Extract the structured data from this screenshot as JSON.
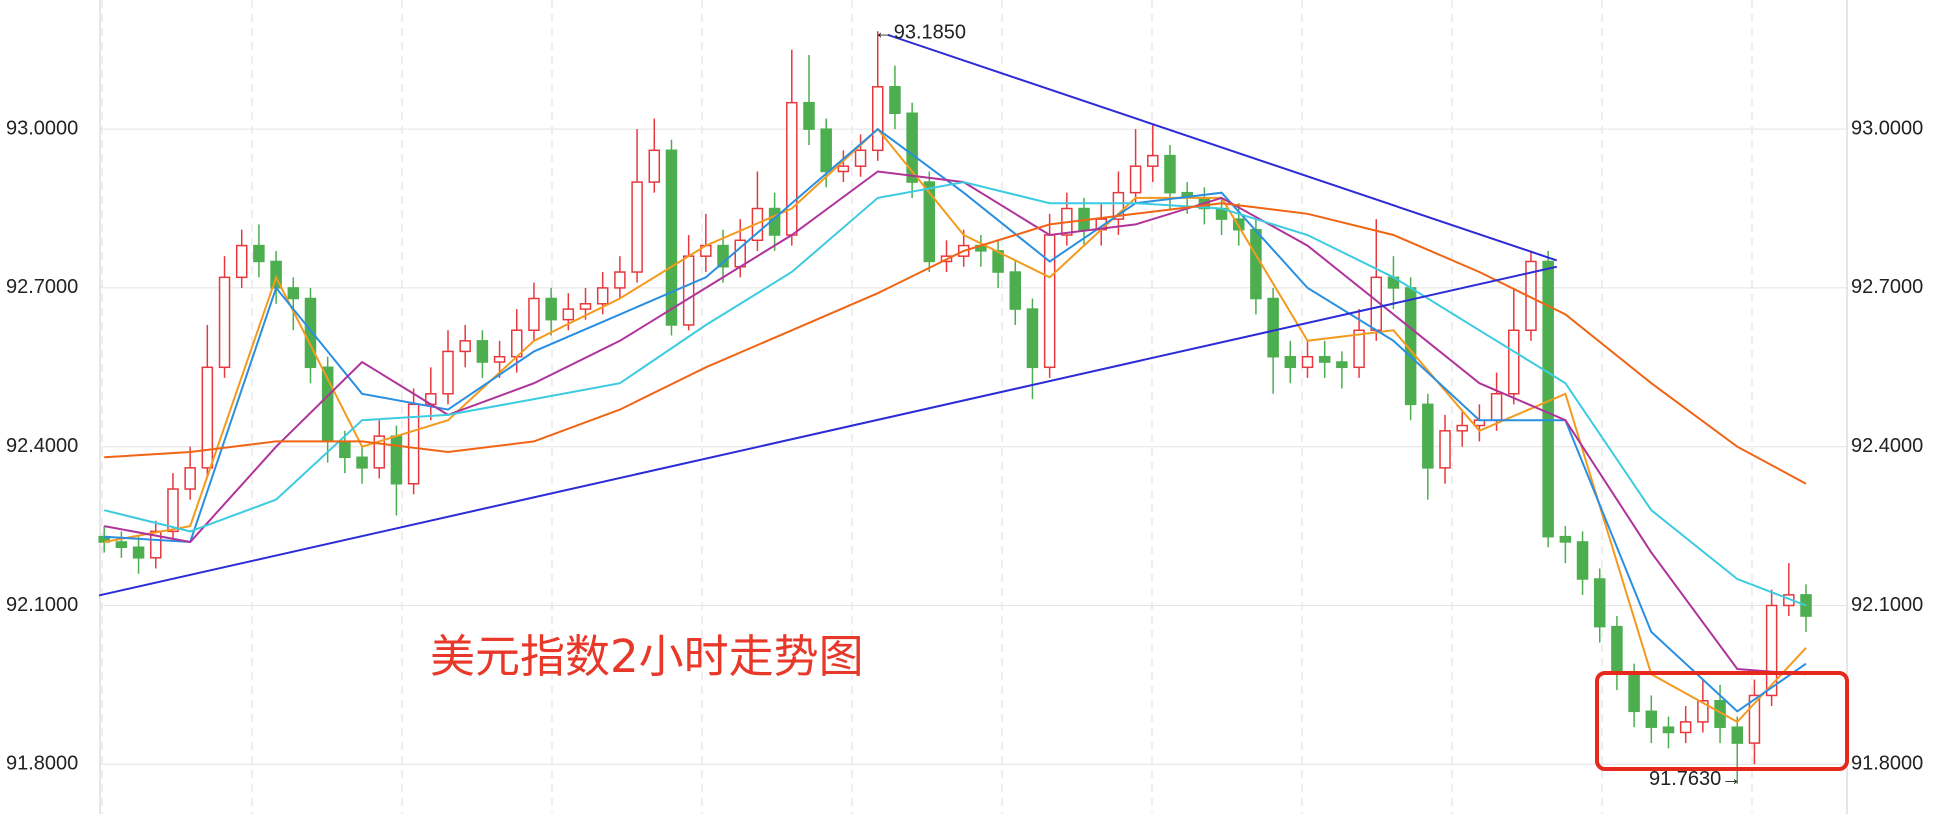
{
  "chart_data": {
    "type": "candlestick",
    "title": "美元指数2小时走势图",
    "ylim": [
      91.706,
      93.244
    ],
    "yticks": [
      {
        "value": 91.8,
        "label": "91.8000"
      },
      {
        "value": 92.1,
        "label": "92.1000"
      },
      {
        "value": 92.4,
        "label": "92.4000"
      },
      {
        "value": 92.7,
        "label": "92.7000"
      },
      {
        "value": 93.0,
        "label": "93.0000"
      }
    ],
    "grid": true,
    "up_color": "#e8383d",
    "down_color": "#4cae4f",
    "open": [
      92.23,
      92.22,
      92.21,
      92.19,
      92.24,
      92.32,
      92.36,
      92.55,
      92.72,
      92.78,
      92.75,
      92.7,
      92.68,
      92.55,
      92.41,
      92.38,
      92.36,
      92.42,
      92.33,
      92.48,
      92.5,
      92.58,
      92.6,
      92.56,
      92.57,
      92.62,
      92.68,
      92.64,
      92.66,
      92.67,
      92.7,
      92.73,
      92.9,
      92.96,
      92.63,
      92.76,
      92.78,
      92.74,
      92.79,
      92.85,
      92.8,
      93.05,
      93.0,
      92.92,
      92.93,
      92.96,
      93.08,
      93.03,
      92.9,
      92.75,
      92.76,
      92.78,
      92.77,
      92.73,
      92.66,
      92.55,
      92.8,
      92.85,
      92.81,
      92.83,
      92.88,
      92.93,
      92.95,
      92.88,
      92.87,
      92.85,
      92.83,
      92.81,
      92.68,
      92.57,
      92.55,
      92.57,
      92.56,
      92.55,
      92.62,
      92.72,
      92.7,
      92.48,
      92.36,
      92.43,
      92.44,
      92.45,
      92.5,
      92.62,
      92.75,
      92.23,
      92.22,
      92.15,
      92.06,
      91.97,
      91.9,
      91.87,
      91.86,
      91.88,
      91.92,
      91.87,
      91.84,
      91.93,
      92.1,
      92.12
    ],
    "high": [
      92.25,
      92.24,
      92.23,
      92.26,
      92.35,
      92.4,
      92.63,
      92.76,
      92.81,
      92.82,
      92.77,
      92.72,
      92.7,
      92.57,
      92.43,
      92.4,
      92.45,
      92.44,
      92.51,
      92.55,
      92.62,
      92.63,
      92.62,
      92.6,
      92.66,
      92.71,
      92.7,
      92.69,
      92.7,
      92.73,
      92.76,
      93.0,
      93.02,
      92.98,
      92.8,
      92.84,
      92.81,
      92.83,
      92.92,
      92.88,
      93.15,
      93.14,
      93.02,
      92.96,
      92.99,
      93.185,
      93.12,
      93.05,
      92.92,
      92.79,
      92.81,
      92.8,
      92.79,
      92.75,
      92.68,
      92.84,
      92.88,
      92.87,
      92.86,
      92.92,
      93.0,
      93.01,
      92.97,
      92.9,
      92.89,
      92.87,
      92.86,
      92.83,
      92.7,
      92.6,
      92.6,
      92.6,
      92.58,
      92.66,
      92.83,
      92.76,
      92.72,
      92.5,
      92.46,
      92.47,
      92.48,
      92.54,
      92.7,
      92.77,
      92.77,
      92.25,
      92.24,
      92.17,
      92.08,
      91.99,
      91.93,
      91.89,
      91.91,
      91.96,
      91.95,
      91.89,
      91.96,
      92.13,
      92.18,
      92.14
    ],
    "low": [
      92.2,
      92.19,
      92.16,
      92.17,
      92.22,
      92.3,
      92.34,
      92.53,
      92.7,
      92.72,
      92.67,
      92.62,
      92.52,
      92.37,
      92.35,
      92.33,
      92.34,
      92.27,
      92.31,
      92.45,
      92.48,
      92.55,
      92.53,
      92.53,
      92.54,
      92.6,
      92.61,
      92.62,
      92.64,
      92.65,
      92.68,
      92.71,
      92.88,
      92.61,
      92.62,
      92.73,
      92.71,
      92.72,
      92.77,
      92.77,
      92.78,
      92.97,
      92.89,
      92.9,
      92.91,
      92.94,
      93.0,
      92.87,
      92.73,
      92.73,
      92.74,
      92.74,
      92.7,
      92.63,
      92.49,
      92.53,
      92.78,
      92.78,
      92.78,
      92.8,
      92.86,
      92.9,
      92.85,
      92.84,
      92.82,
      92.8,
      92.78,
      92.65,
      92.5,
      92.52,
      92.53,
      92.53,
      92.51,
      92.53,
      92.6,
      92.66,
      92.45,
      92.3,
      92.33,
      92.4,
      92.41,
      92.43,
      92.48,
      92.6,
      92.21,
      92.18,
      92.12,
      92.03,
      91.94,
      91.87,
      91.84,
      91.83,
      91.84,
      91.86,
      91.84,
      91.763,
      91.8,
      91.91,
      92.08,
      92.05
    ],
    "close": [
      92.22,
      92.21,
      92.19,
      92.24,
      92.32,
      92.36,
      92.55,
      92.72,
      92.78,
      92.75,
      92.7,
      92.68,
      92.55,
      92.41,
      92.38,
      92.36,
      92.42,
      92.33,
      92.48,
      92.5,
      92.58,
      92.6,
      92.56,
      92.57,
      92.62,
      92.68,
      92.64,
      92.66,
      92.67,
      92.7,
      92.73,
      92.9,
      92.96,
      92.63,
      92.76,
      92.78,
      92.74,
      92.79,
      92.85,
      92.8,
      93.05,
      93.0,
      92.92,
      92.93,
      92.96,
      93.08,
      93.03,
      92.9,
      92.75,
      92.76,
      92.78,
      92.77,
      92.73,
      92.66,
      92.55,
      92.8,
      92.85,
      92.81,
      92.83,
      92.88,
      92.93,
      92.95,
      92.88,
      92.87,
      92.85,
      92.83,
      92.81,
      92.68,
      92.57,
      92.55,
      92.57,
      92.56,
      92.55,
      92.62,
      92.72,
      92.7,
      92.48,
      92.36,
      92.43,
      92.44,
      92.45,
      92.5,
      92.62,
      92.75,
      92.23,
      92.22,
      92.15,
      92.06,
      91.97,
      91.9,
      91.87,
      91.86,
      91.88,
      91.92,
      91.87,
      91.84,
      91.93,
      92.1,
      92.12,
      92.08
    ],
    "ma_x": [
      0,
      5,
      10,
      15,
      20,
      25,
      30,
      35,
      40,
      45,
      50,
      55,
      60,
      65,
      70,
      75,
      80,
      85,
      90,
      95,
      99
    ],
    "series": [
      {
        "color": "#f39a1e",
        "values": [
          92.22,
          92.25,
          92.72,
          92.4,
          92.45,
          92.6,
          92.68,
          92.78,
          92.85,
          93.0,
          92.8,
          92.72,
          92.87,
          92.87,
          92.6,
          92.62,
          92.43,
          92.5,
          91.97,
          91.88,
          92.02
        ]
      },
      {
        "color": "#2a8fe0",
        "values": [
          92.23,
          92.22,
          92.7,
          92.5,
          92.47,
          92.58,
          92.65,
          92.72,
          92.86,
          93.0,
          92.88,
          92.75,
          92.86,
          92.88,
          92.7,
          92.6,
          92.45,
          92.45,
          92.05,
          91.9,
          91.99
        ]
      },
      {
        "color": "#b0339a",
        "values": [
          92.25,
          92.22,
          92.4,
          92.56,
          92.46,
          92.52,
          92.6,
          92.7,
          92.8,
          92.92,
          92.9,
          92.8,
          92.82,
          92.87,
          92.78,
          92.65,
          92.52,
          92.45,
          92.2,
          91.98,
          91.97
        ]
      },
      {
        "color": "#3ccbe0",
        "values": [
          92.28,
          92.24,
          92.3,
          92.45,
          92.46,
          92.49,
          92.52,
          92.63,
          92.73,
          92.87,
          92.9,
          92.86,
          92.86,
          92.85,
          92.8,
          92.72,
          92.62,
          92.52,
          92.28,
          92.15,
          92.1
        ]
      },
      {
        "color": "#f06414",
        "values": [
          92.38,
          92.39,
          92.41,
          92.41,
          92.39,
          92.41,
          92.47,
          92.55,
          92.62,
          92.69,
          92.77,
          92.82,
          92.84,
          92.86,
          92.84,
          92.8,
          92.73,
          92.65,
          92.52,
          92.4,
          92.33
        ]
      }
    ],
    "trendlines": [
      {
        "color": "#2b2bd8",
        "x": [
          45.6,
          84.5
        ],
        "values": [
          93.178,
          92.752
        ]
      },
      {
        "color": "#2b2bd8",
        "x": [
          -0.3,
          84.5
        ],
        "values": [
          92.119,
          92.74
        ]
      }
    ],
    "annotations": [
      "←93.1850",
      "91.7630→"
    ]
  }
}
